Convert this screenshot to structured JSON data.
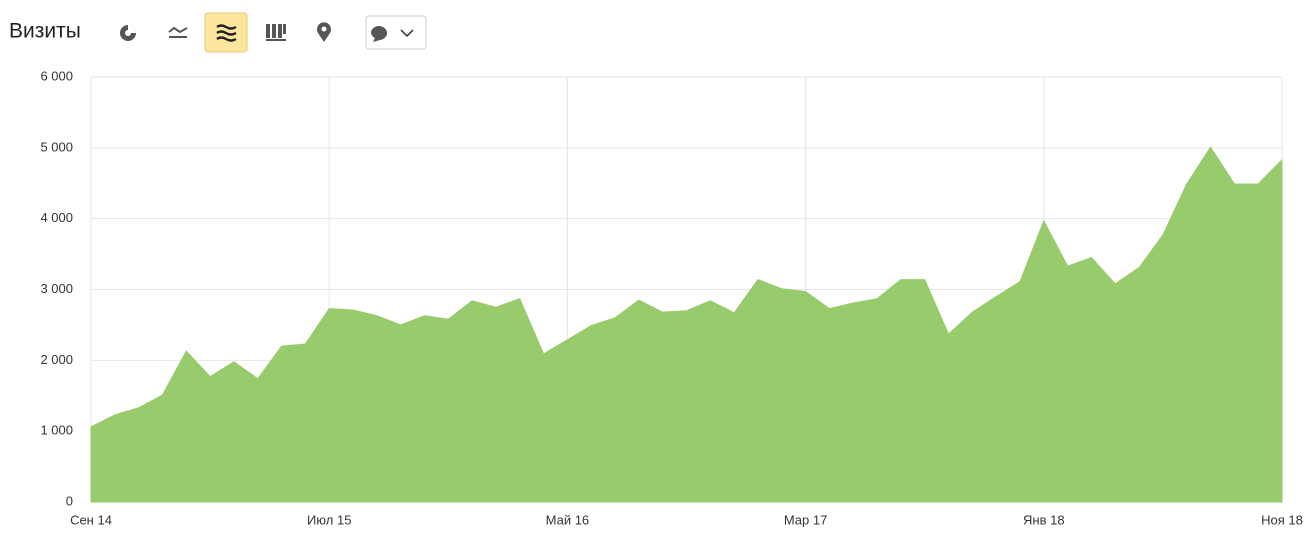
{
  "chart_data": {
    "type": "area",
    "title": "Визиты",
    "categories": [
      "Сен 14",
      null,
      null,
      null,
      null,
      null,
      null,
      null,
      null,
      null,
      "Июл 15",
      null,
      null,
      null,
      null,
      null,
      null,
      null,
      null,
      null,
      "Май 16",
      null,
      null,
      null,
      null,
      null,
      null,
      null,
      null,
      null,
      "Мар 17",
      null,
      null,
      null,
      null,
      null,
      null,
      null,
      null,
      null,
      "Янв 18",
      null,
      null,
      null,
      null,
      null,
      null,
      null,
      null,
      null,
      "Ноя 18"
    ],
    "values": [
      1060,
      1230,
      1330,
      1510,
      2130,
      1770,
      1980,
      1740,
      2200,
      2230,
      2730,
      2710,
      2630,
      2500,
      2630,
      2580,
      2840,
      2750,
      2870,
      2090,
      2290,
      2490,
      2600,
      2850,
      2680,
      2700,
      2840,
      2670,
      3140,
      3010,
      2970,
      2730,
      2810,
      2870,
      3140,
      3140,
      2370,
      2680,
      2900,
      3110,
      3970,
      3330,
      3450,
      3080,
      3310,
      3770,
      4490,
      5010,
      4490,
      4490,
      4830
    ],
    "color": "#98cb6b",
    "ylim": [
      0,
      6000
    ],
    "yticks": [
      0,
      {
        "value": 1000,
        "label": "1 000"
      },
      {
        "value": 2000,
        "label": "2 000"
      },
      {
        "value": 3000,
        "label": "3 000"
      },
      {
        "value": 4000,
        "label": "4 000"
      },
      {
        "value": 5000,
        "label": "5 000"
      },
      {
        "value": 6000,
        "label": "6 000"
      }
    ],
    "grid": true
  }
}
